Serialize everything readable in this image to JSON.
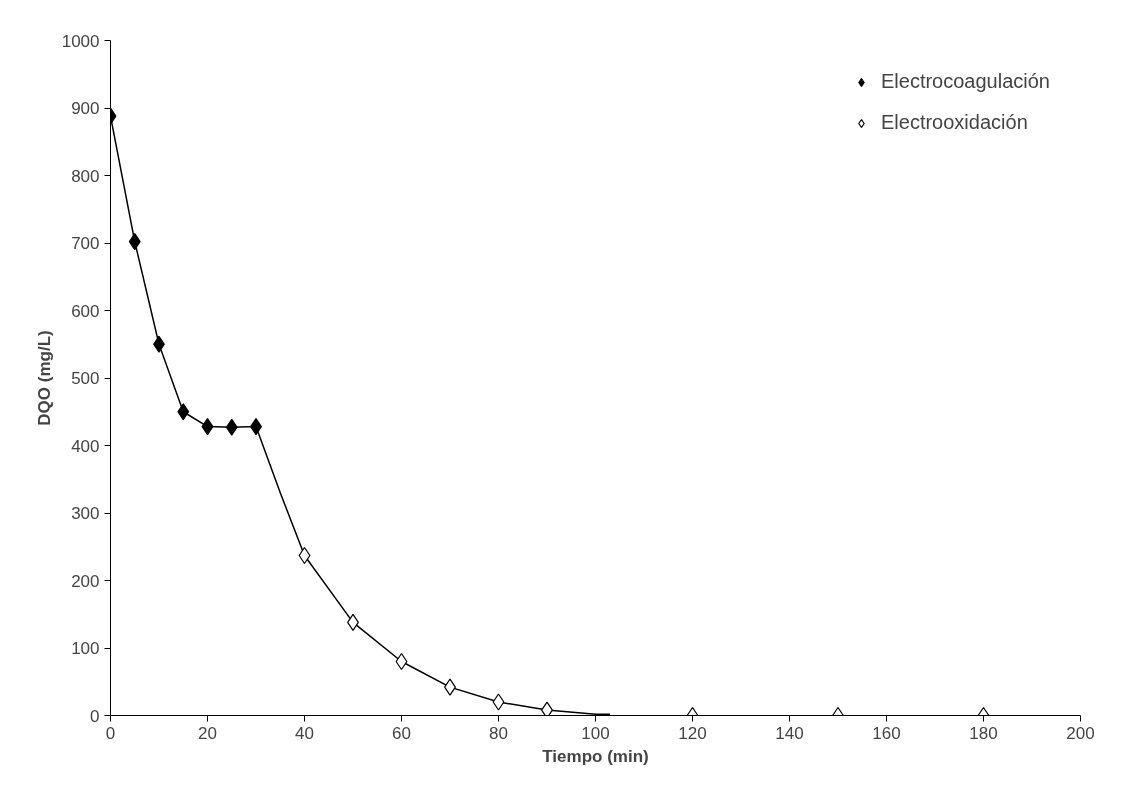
{
  "chart_data": {
    "type": "scatter",
    "xlabel": "Tiempo (min)",
    "ylabel": "DQO (mg/L)",
    "xlim": [
      0,
      200
    ],
    "xticks": [
      0,
      20,
      40,
      60,
      80,
      100,
      120,
      140,
      160,
      180,
      200
    ],
    "ylim": [
      0,
      1000
    ],
    "yticks": [
      0,
      100,
      200,
      300,
      400,
      500,
      600,
      700,
      800,
      900,
      1000
    ],
    "grid": false,
    "legend": "top right",
    "marker": "diamond",
    "series": [
      {
        "type": "line",
        "marker": "none",
        "color": "#000000",
        "x": [
          0,
          5,
          10,
          15,
          20,
          25,
          30,
          35,
          40,
          50,
          60,
          70,
          80,
          90,
          100,
          103
        ],
        "values": [
          888,
          702,
          550,
          450,
          428,
          427,
          428,
          330,
          237,
          138,
          80,
          42,
          20,
          8,
          2,
          2
        ]
      },
      {
        "name": "Electrocoagulación",
        "color": "#000000",
        "x": [
          0,
          5,
          10,
          15,
          20,
          25,
          30
        ],
        "values": [
          888,
          702,
          550,
          450,
          428,
          427,
          428
        ]
      },
      {
        "name": "Electrooxidación",
        "color": "#ffffff",
        "x": [
          40,
          50,
          60,
          70,
          80,
          90,
          120,
          150,
          180
        ],
        "values": [
          237,
          138,
          80,
          42,
          20,
          8,
          0,
          0,
          0
        ]
      }
    ]
  }
}
